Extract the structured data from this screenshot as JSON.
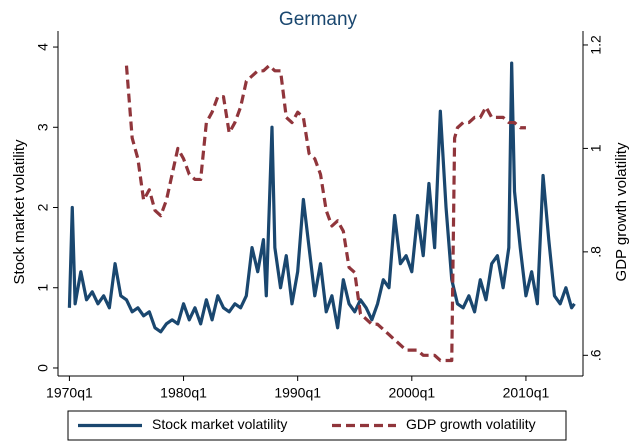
{
  "chart_data": {
    "type": "line",
    "title": "Germany",
    "y_label": "Stock market volatility",
    "y2_label": "GDP growth volatility",
    "xlim": [
      1969,
      2015
    ],
    "xticks": [
      {
        "value": 1970,
        "label": "1970q1"
      },
      {
        "value": 1980,
        "label": "1980q1"
      },
      {
        "value": 1990,
        "label": "1990q1"
      },
      {
        "value": 2000,
        "label": "2000q1"
      },
      {
        "value": 2010,
        "label": "2010q1"
      }
    ],
    "ylim": [
      -0.1,
      4.2
    ],
    "yticks": [
      0,
      1,
      2,
      3,
      4
    ],
    "y2lim": [
      0.56,
      1.227
    ],
    "y2ticks": [
      {
        "value": 0.6,
        "label": ".6"
      },
      {
        "value": 0.8,
        "label": ".8"
      },
      1,
      {
        "value": 1.2,
        "label": "1.2"
      }
    ],
    "legend": "bottom",
    "series": [
      {
        "name": "Stock market volatility",
        "color": "#1a476f",
        "dash": false,
        "x": [
          1970,
          1970.25,
          1970.5,
          1971,
          1971.5,
          1972,
          1972.5,
          1973,
          1973.5,
          1974,
          1974.5,
          1975,
          1975.5,
          1976,
          1976.5,
          1977,
          1977.5,
          1978,
          1978.5,
          1979,
          1979.5,
          1980,
          1980.5,
          1981,
          1981.5,
          1982,
          1982.5,
          1983,
          1983.5,
          1984,
          1984.5,
          1985,
          1985.5,
          1986,
          1986.5,
          1987,
          1987.25,
          1987.75,
          1988,
          1988.5,
          1989,
          1989.5,
          1990,
          1990.5,
          1991,
          1991.5,
          1992,
          1992.5,
          1993,
          1993.5,
          1994,
          1994.5,
          1995,
          1995.5,
          1996,
          1996.5,
          1997,
          1997.5,
          1998,
          1998.5,
          1999,
          1999.5,
          2000,
          2000.5,
          2001,
          2001.5,
          2002,
          2002.5,
          2003,
          2003.5,
          2004,
          2004.5,
          2005,
          2005.5,
          2006,
          2006.5,
          2007,
          2007.5,
          2008,
          2008.5,
          2008.75,
          2009,
          2009.5,
          2010,
          2010.5,
          2011,
          2011.5,
          2012,
          2012.5,
          2013,
          2013.5,
          2014,
          2014.25
        ],
        "values": [
          0.75,
          2.0,
          0.8,
          1.2,
          0.85,
          0.95,
          0.8,
          0.9,
          0.75,
          1.3,
          0.9,
          0.85,
          0.7,
          0.75,
          0.65,
          0.7,
          0.5,
          0.45,
          0.55,
          0.6,
          0.55,
          0.8,
          0.6,
          0.75,
          0.55,
          0.85,
          0.6,
          0.9,
          0.75,
          0.7,
          0.8,
          0.75,
          0.9,
          1.5,
          1.2,
          1.6,
          0.9,
          3.0,
          1.5,
          1.0,
          1.4,
          0.8,
          1.2,
          2.1,
          1.5,
          0.9,
          1.3,
          0.7,
          0.9,
          0.5,
          1.1,
          0.8,
          0.7,
          0.85,
          0.75,
          0.6,
          0.8,
          1.1,
          1.0,
          1.9,
          1.3,
          1.4,
          1.2,
          1.9,
          1.4,
          2.3,
          1.5,
          3.2,
          2.0,
          1.1,
          0.8,
          0.75,
          0.9,
          0.7,
          1.1,
          0.85,
          1.3,
          1.4,
          1.0,
          1.5,
          3.8,
          2.2,
          1.5,
          0.9,
          1.2,
          0.8,
          2.4,
          1.6,
          0.9,
          0.8,
          1.0,
          0.75,
          0.8
        ]
      },
      {
        "name": "GDP growth volatility",
        "color": "#90353b",
        "dash": true,
        "axis": "y2",
        "x": [
          1975,
          1975.5,
          1976,
          1976.5,
          1977,
          1977.5,
          1978,
          1978.5,
          1979,
          1979.5,
          1980,
          1980.5,
          1981,
          1981.5,
          1982,
          1982.5,
          1983,
          1983.5,
          1984,
          1984.5,
          1985,
          1985.5,
          1986,
          1986.5,
          1987,
          1987.5,
          1988,
          1988.5,
          1989,
          1989.5,
          1990,
          1990.5,
          1991,
          1991.5,
          1992,
          1992.5,
          1993,
          1993.5,
          1994,
          1994.5,
          1995,
          1995.5,
          1996,
          1996.5,
          1997,
          1997.5,
          1998,
          1998.5,
          1999,
          1999.5,
          2000,
          2000.5,
          2001,
          2001.5,
          2002,
          2002.5,
          2003,
          2003.5,
          2003.75,
          2004,
          2004.5,
          2005,
          2005.5,
          2006,
          2006.5,
          2007,
          2007.5,
          2008,
          2008.5,
          2009,
          2009.5,
          2010
        ],
        "values": [
          1.16,
          1.02,
          0.98,
          0.9,
          0.92,
          0.88,
          0.87,
          0.9,
          0.95,
          1.0,
          0.98,
          0.95,
          0.94,
          0.94,
          1.05,
          1.07,
          1.1,
          1.1,
          1.03,
          1.05,
          1.08,
          1.13,
          1.14,
          1.15,
          1.15,
          1.16,
          1.15,
          1.15,
          1.06,
          1.05,
          1.07,
          1.06,
          0.99,
          0.98,
          0.95,
          0.88,
          0.85,
          0.86,
          0.84,
          0.77,
          0.76,
          0.68,
          0.67,
          0.66,
          0.66,
          0.65,
          0.64,
          0.63,
          0.62,
          0.61,
          0.61,
          0.61,
          0.6,
          0.6,
          0.6,
          0.59,
          0.59,
          0.59,
          1.02,
          1.04,
          1.05,
          1.05,
          1.06,
          1.06,
          1.08,
          1.06,
          1.06,
          1.06,
          1.05,
          1.05,
          1.04,
          1.04
        ]
      }
    ]
  }
}
